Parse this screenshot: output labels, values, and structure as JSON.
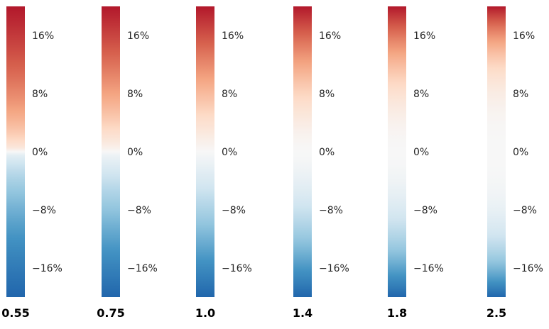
{
  "chart_data": {
    "type": "heatmap",
    "colormap": "RdBu_r",
    "colormap_stops": [
      "#2166ac",
      "#4393c3",
      "#92c5de",
      "#d1e5f0",
      "#f7f7f7",
      "#fddbc7",
      "#f4a582",
      "#d6604d",
      "#b2182b"
    ],
    "value_range": [
      -20,
      20
    ],
    "tick_values": [
      16,
      8,
      0,
      -8,
      -16
    ],
    "tick_labels": [
      "16%",
      "8%",
      "0%",
      "−8%",
      "−16%"
    ],
    "colorbars": [
      {
        "gamma_label": "0.55",
        "gamma": 0.55
      },
      {
        "gamma_label": "0.75",
        "gamma": 0.75
      },
      {
        "gamma_label": "1.0",
        "gamma": 1.0
      },
      {
        "gamma_label": "1.4",
        "gamma": 1.4
      },
      {
        "gamma_label": "1.8",
        "gamma": 1.8
      },
      {
        "gamma_label": "2.5",
        "gamma": 2.5
      }
    ]
  }
}
